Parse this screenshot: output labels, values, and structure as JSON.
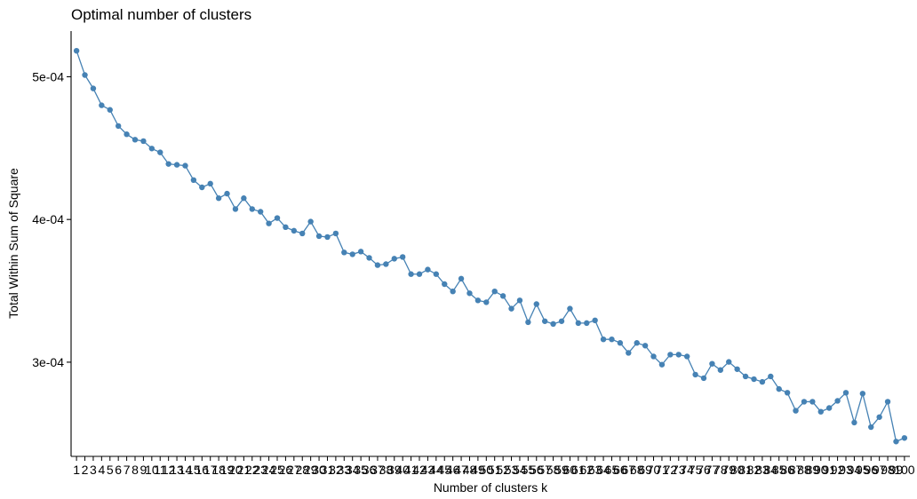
{
  "chart_data": {
    "type": "line",
    "title": "Optimal number of clusters",
    "xlabel": "Number of clusters k",
    "ylabel": "Total Within Sum of Square",
    "x": [
      1,
      2,
      3,
      4,
      5,
      6,
      7,
      8,
      9,
      10,
      11,
      12,
      13,
      14,
      15,
      16,
      17,
      18,
      19,
      20,
      21,
      22,
      23,
      24,
      25,
      26,
      27,
      28,
      29,
      30,
      31,
      32,
      33,
      34,
      35,
      36,
      37,
      38,
      39,
      40,
      41,
      42,
      43,
      44,
      45,
      46,
      47,
      48,
      49,
      50,
      51,
      52,
      53,
      54,
      55,
      56,
      57,
      58,
      59,
      60,
      61,
      62,
      63,
      64,
      65,
      66,
      67,
      68,
      69,
      70,
      71,
      72,
      73,
      74,
      75,
      76,
      77,
      78,
      79,
      80,
      81,
      82,
      83,
      84,
      85,
      86,
      87,
      88,
      89,
      90,
      91,
      92,
      93,
      94,
      95,
      96,
      97,
      98,
      99,
      100
    ],
    "values": [
      0.0005182,
      0.0005012,
      0.0004918,
      0.00048,
      0.0004768,
      0.0004655,
      0.0004597,
      0.0004559,
      0.0004549,
      0.0004497,
      0.000447,
      0.0004389,
      0.0004383,
      0.0004377,
      0.0004276,
      0.0004225,
      0.0004251,
      0.0004149,
      0.0004181,
      0.0004073,
      0.0004149,
      0.0004073,
      0.0004054,
      0.0003972,
      0.000401,
      0.0003946,
      0.0003921,
      0.0003902,
      0.0003985,
      0.0003883,
      0.0003877,
      0.0003902,
      0.0003769,
      0.0003756,
      0.0003775,
      0.0003731,
      0.000368,
      0.0003687,
      0.0003725,
      0.0003737,
      0.0003617,
      0.0003617,
      0.0003649,
      0.0003617,
      0.0003547,
      0.0003496,
      0.0003585,
      0.0003483,
      0.0003433,
      0.000342,
      0.0003496,
      0.0003464,
      0.0003375,
      0.0003433,
      0.000328,
      0.0003407,
      0.0003287,
      0.0003268,
      0.0003287,
      0.0003375,
      0.0003274,
      0.0003274,
      0.0003293,
      0.000316,
      0.000316,
      0.0003135,
      0.0003065,
      0.0003135,
      0.0003116,
      0.000304,
      0.0002983,
      0.0003053,
      0.0003053,
      0.000304,
      0.0002913,
      0.0002888,
      0.0002989,
      0.0002945,
      0.0003002,
      0.0002951,
      0.00029,
      0.0002881,
      0.0002862,
      0.00029,
      0.0002812,
      0.0002786,
      0.000266,
      0.0002723,
      0.0002723,
      0.0002653,
      0.0002679,
      0.0002729,
      0.0002786,
      0.0002577,
      0.000278,
      0.0002545,
      0.0002615,
      0.0002723,
      0.0002444,
      0.0002469
    ],
    "ylim": [
      0.000234,
      0.000532
    ],
    "yticks": [
      0.0003,
      0.0004,
      0.0005
    ],
    "ytick_labels": [
      "3e-04",
      "4e-04",
      "5e-04"
    ],
    "grid": false,
    "legend": "none",
    "line_color": "#4682B4",
    "point_color": "#4682B4"
  }
}
